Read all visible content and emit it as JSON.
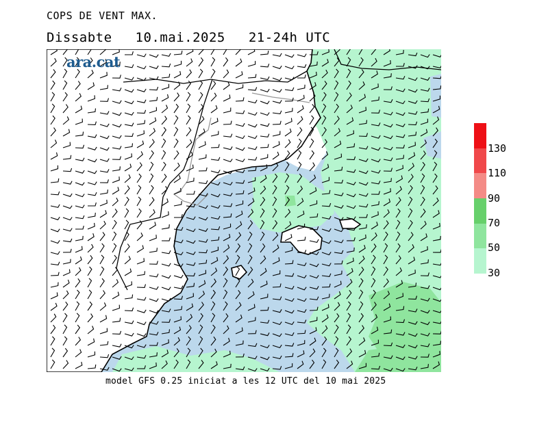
{
  "title": "COPS DE VENT MAX.",
  "subtitle": {
    "day": "Dissabte",
    "date": "10.mai.2025",
    "time": "21-24h UTC"
  },
  "logo": "ara.cat",
  "footer": "model GFS 0.25 iniciat a les 12 UTC del 10 mai 2025",
  "legend": {
    "ticks": [
      "130",
      "110",
      "90",
      "70",
      "50",
      "30"
    ],
    "bins": [
      {
        "from": 30,
        "to": 50,
        "color": "#b6f5cf"
      },
      {
        "from": 50,
        "to": 70,
        "color": "#8fe59e"
      },
      {
        "from": 70,
        "to": 90,
        "color": "#67d06b"
      },
      {
        "from": 90,
        "to": 110,
        "color": "#f48b86"
      },
      {
        "from": 110,
        "to": 130,
        "color": "#f0484a"
      },
      {
        "from": 130,
        "to": 150,
        "color": "#ee1016"
      }
    ]
  },
  "colors": {
    "sea": "#bcd8ec",
    "land": "#ffffff",
    "coast": "#000000",
    "border": "#999999"
  }
}
